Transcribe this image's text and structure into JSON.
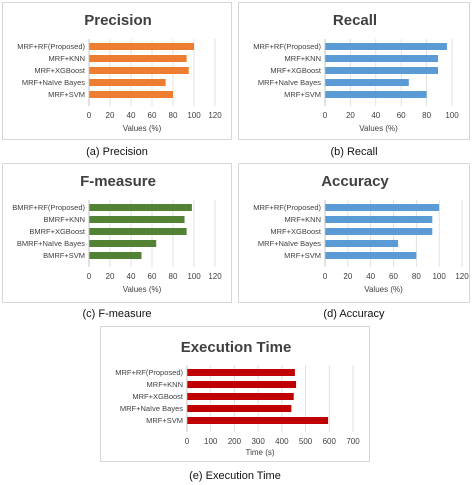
{
  "captions": {
    "a": "(a) Precision",
    "b": "(b) Recall",
    "c": "(c) F-measure",
    "d": "(d) Accuracy",
    "e": "(e) Execution Time"
  },
  "chart_data": [
    {
      "id": "a",
      "type": "bar",
      "orientation": "horizontal",
      "title": "Precision",
      "xlabel": "Values (%)",
      "ylabel": "",
      "categories": [
        "MRF+RF(Proposed)",
        "MRF+KNN",
        "MRF+XGBoost",
        "MRF+Naïve Bayes",
        "MRF+SVM"
      ],
      "values": [
        100,
        93,
        95,
        73,
        80
      ],
      "xlim": [
        0,
        120
      ],
      "xticks": [
        0,
        20,
        40,
        60,
        80,
        100,
        120
      ],
      "color": "#ED7D31",
      "grid": true,
      "legend": "none"
    },
    {
      "id": "b",
      "type": "bar",
      "orientation": "horizontal",
      "title": "Recall",
      "xlabel": "Values (%)",
      "ylabel": "",
      "categories": [
        "MRF+RF(Proposed)",
        "MRF+KNN",
        "MRF+XGBoost",
        "MRF+Naïve Bayes",
        "MRF+SVM"
      ],
      "values": [
        96,
        89,
        89,
        66,
        80
      ],
      "xlim": [
        0,
        100
      ],
      "xticks": [
        0,
        20,
        40,
        60,
        80,
        100
      ],
      "color": "#5B9BD5",
      "grid": true,
      "legend": "none"
    },
    {
      "id": "c",
      "type": "bar",
      "orientation": "horizontal",
      "title": "F-measure",
      "xlabel": "Values (%)",
      "ylabel": "",
      "categories": [
        "BMRF+RF(Proposed)",
        "BMRF+KNN",
        "BMRF+XGBoost",
        "BMRF+Naïve Bayes",
        "BMRF+SVM"
      ],
      "values": [
        98,
        91,
        93,
        64,
        50
      ],
      "xlim": [
        0,
        120
      ],
      "xticks": [
        0,
        20,
        40,
        60,
        80,
        100,
        120
      ],
      "color": "#548235",
      "grid": true,
      "legend": "none"
    },
    {
      "id": "d",
      "type": "bar",
      "orientation": "horizontal",
      "title": "Accuracy",
      "xlabel": "Values (%)",
      "ylabel": "",
      "categories": [
        "MRF+RF(Proposed)",
        "MRF+KNN",
        "MRF+XGBoost",
        "MRF+Naïve Bayes",
        "MRF+SVM"
      ],
      "values": [
        100,
        94,
        94,
        64,
        80
      ],
      "xlim": [
        0,
        120
      ],
      "xticks": [
        0,
        20,
        40,
        60,
        80,
        100,
        120
      ],
      "color": "#5B9BD5",
      "grid": true,
      "legend": "none"
    },
    {
      "id": "e",
      "type": "bar",
      "orientation": "horizontal",
      "title": "Execution Time",
      "xlabel": "Time (s)",
      "ylabel": "",
      "categories": [
        "MRF+RF(Proposed)",
        "MRF+KNN",
        "MRF+XGBoost",
        "MRF+Naïve Bayes",
        "MRF+SVM"
      ],
      "values": [
        455,
        460,
        450,
        440,
        595
      ],
      "xlim": [
        0,
        700
      ],
      "xticks": [
        0,
        100,
        200,
        300,
        400,
        500,
        600,
        700
      ],
      "color": "#C00000",
      "grid": true,
      "legend": "none"
    }
  ]
}
